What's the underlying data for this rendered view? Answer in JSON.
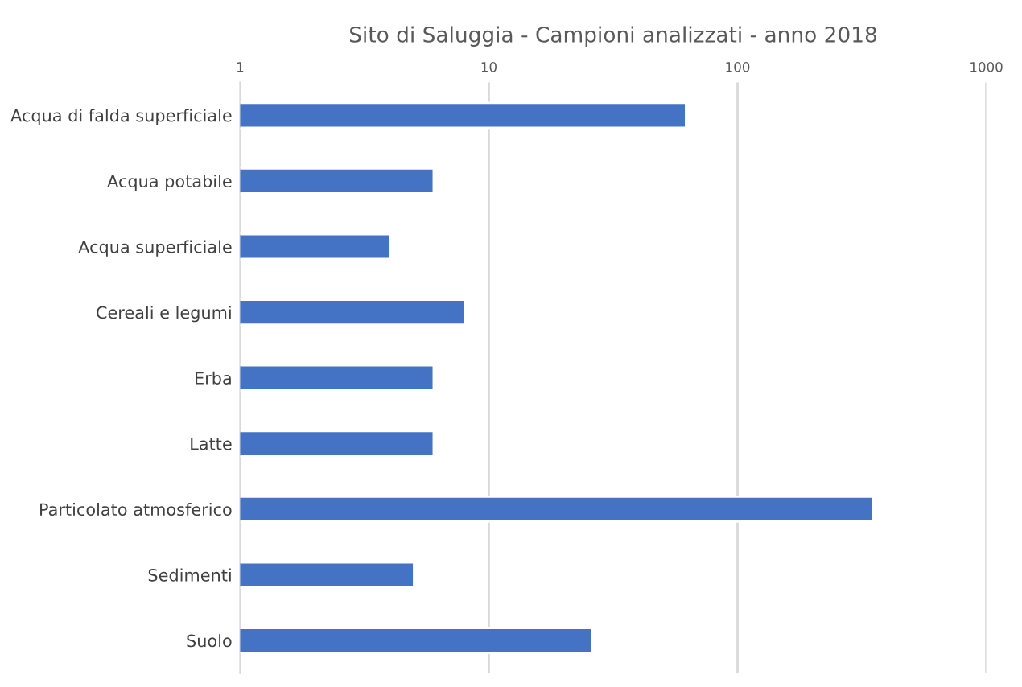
{
  "chart_data": {
    "type": "bar",
    "orientation": "horizontal",
    "title": "Sito di Saluggia - Campioni analizzati - anno 2018",
    "categories": [
      "Acqua di falda superficiale",
      "Acqua potabile",
      "Acqua superficiale",
      "Cereali e legumi",
      "Erba",
      "Latte",
      "Particolato atmosferico",
      "Sedimenti",
      "Suolo"
    ],
    "values": [
      62,
      6,
      4,
      8,
      6,
      6,
      350,
      5,
      26
    ],
    "color": "#4472c4",
    "log": "x",
    "xlim": [
      1,
      1000
    ],
    "xticks": [
      1,
      10,
      100,
      1000
    ],
    "grid": "x"
  }
}
